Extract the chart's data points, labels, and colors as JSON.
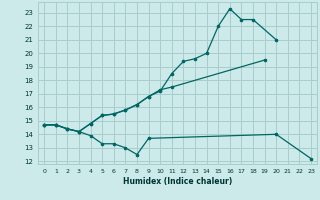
{
  "xlabel": "Humidex (Indice chaleur)",
  "x_ticks": [
    0,
    1,
    2,
    3,
    4,
    5,
    6,
    7,
    8,
    9,
    10,
    11,
    12,
    13,
    14,
    15,
    16,
    17,
    18,
    19,
    20,
    21,
    22,
    23
  ],
  "xlim": [
    -0.5,
    23.5
  ],
  "ylim": [
    11.8,
    23.8
  ],
  "y_ticks": [
    12,
    13,
    14,
    15,
    16,
    17,
    18,
    19,
    20,
    21,
    22,
    23
  ],
  "background_color": "#cceaea",
  "grid_color": "#aacccc",
  "line_color": "#006666",
  "s1_segments": [
    {
      "x": [
        0,
        1,
        2,
        3,
        4,
        5,
        6,
        7,
        8,
        9
      ],
      "y": [
        14.7,
        14.7,
        14.4,
        14.2,
        13.9,
        13.3,
        13.3,
        13.0,
        12.5,
        13.7
      ]
    },
    {
      "x": [
        9,
        20
      ],
      "y": [
        13.7,
        14.0
      ]
    },
    {
      "x": [
        20,
        23
      ],
      "y": [
        14.0,
        12.2
      ]
    }
  ],
  "s1_pts": {
    "x": [
      0,
      1,
      2,
      3,
      4,
      5,
      6,
      7,
      8,
      9,
      20,
      23
    ],
    "y": [
      14.7,
      14.7,
      14.4,
      14.2,
      13.9,
      13.3,
      13.3,
      13.0,
      12.5,
      13.7,
      14.0,
      12.2
    ]
  },
  "s2_segments": [
    {
      "x": [
        0,
        1,
        2,
        3,
        4,
        5,
        6,
        7,
        8,
        9,
        10,
        11
      ],
      "y": [
        14.7,
        14.7,
        14.4,
        14.2,
        14.8,
        15.4,
        15.5,
        15.8,
        16.2,
        16.8,
        17.3,
        17.5
      ]
    },
    {
      "x": [
        11,
        19
      ],
      "y": [
        17.5,
        19.5
      ]
    }
  ],
  "s2_pts": {
    "x": [
      0,
      1,
      2,
      3,
      4,
      5,
      6,
      7,
      8,
      9,
      10,
      11,
      19
    ],
    "y": [
      14.7,
      14.7,
      14.4,
      14.2,
      14.8,
      15.4,
      15.5,
      15.8,
      16.2,
      16.8,
      17.3,
      17.5,
      19.5
    ]
  },
  "s3_segments": [
    {
      "x": [
        0,
        1,
        2,
        3,
        4,
        5,
        6,
        7,
        8,
        9,
        10,
        11,
        12,
        13,
        14,
        15,
        16,
        17,
        18,
        20
      ],
      "y": [
        14.7,
        14.7,
        14.4,
        14.2,
        14.8,
        15.4,
        15.5,
        15.8,
        16.2,
        16.8,
        17.2,
        18.5,
        19.4,
        19.6,
        20.0,
        22.0,
        23.3,
        22.5,
        22.5,
        21.0
      ]
    }
  ],
  "s3_pts": {
    "x": [
      0,
      1,
      2,
      3,
      4,
      5,
      6,
      7,
      8,
      9,
      10,
      11,
      12,
      13,
      14,
      15,
      16,
      17,
      18,
      20
    ],
    "y": [
      14.7,
      14.7,
      14.4,
      14.2,
      14.8,
      15.4,
      15.5,
      15.8,
      16.2,
      16.8,
      17.2,
      18.5,
      19.4,
      19.6,
      20.0,
      22.0,
      23.3,
      22.5,
      22.5,
      21.0
    ]
  }
}
